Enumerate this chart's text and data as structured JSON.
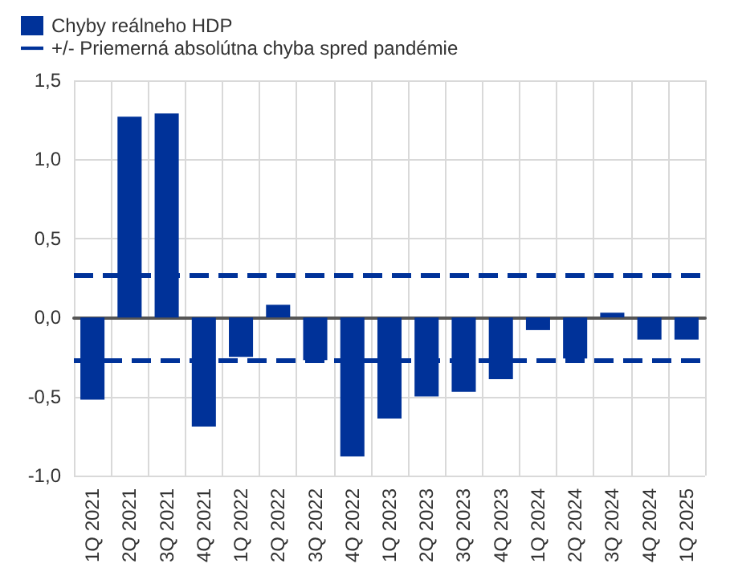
{
  "chart_data": {
    "type": "bar",
    "categories": [
      "1Q 2021",
      "2Q 2021",
      "3Q 2021",
      "4Q 2021",
      "1Q 2022",
      "2Q 2022",
      "3Q 2022",
      "4Q 2022",
      "1Q 2023",
      "2Q 2023",
      "3Q 2023",
      "4Q 2023",
      "1Q 2024",
      "2Q 2024",
      "3Q 2024",
      "4Q 2024",
      "1Q 2025"
    ],
    "series": [
      {
        "name": "Chyby reálneho HDP",
        "color": "#003299",
        "values": [
          -0.52,
          1.27,
          1.29,
          -0.69,
          -0.25,
          0.08,
          -0.27,
          -0.88,
          -0.64,
          -0.5,
          -0.47,
          -0.39,
          -0.08,
          -0.26,
          0.03,
          -0.14,
          -0.14
        ]
      }
    ],
    "ref_lines": [
      {
        "axis": "y",
        "value": 0.27,
        "label": "+/- Priemerná absolútna chyba spred pandémie",
        "color": "#003299",
        "line_style": "dashed"
      },
      {
        "axis": "y",
        "value": -0.27,
        "color": "#003299",
        "line_style": "dashed"
      }
    ],
    "ylim": [
      -1,
      1.5
    ],
    "yticks": [
      {
        "value": -1,
        "label": "-1,0"
      },
      {
        "value": -0.5,
        "label": "-0,5"
      },
      {
        "value": 0,
        "label": "0,0"
      },
      {
        "value": 0.5,
        "label": "0,5"
      },
      {
        "value": 1,
        "label": "1,0"
      },
      {
        "value": 1.5,
        "label": "1,5"
      }
    ],
    "grid": true,
    "legend": "top left"
  }
}
